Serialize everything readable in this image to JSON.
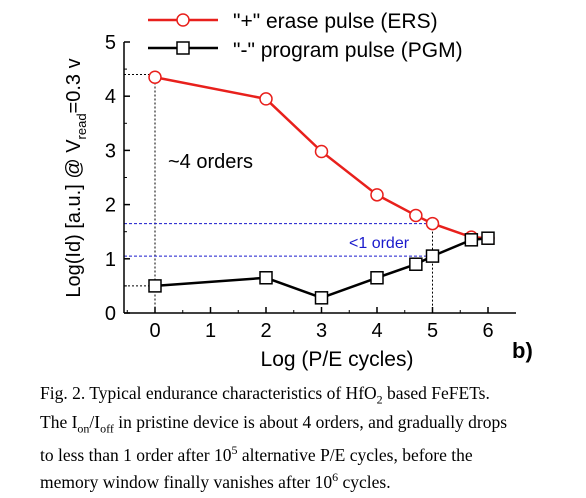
{
  "chart_data": {
    "type": "line",
    "xlabel": "Log (P/E cycles)",
    "ylabel_main": "Log(Id) [a.u.] @ V",
    "ylabel_sub": "read",
    "ylabel_tail": "=0.3 v",
    "panel_label": "b)",
    "xlim": [
      -0.6,
      6.6
    ],
    "ylim": [
      0,
      5
    ],
    "xticks": [
      "0",
      "1",
      "2",
      "3",
      "4",
      "5",
      "6"
    ],
    "yticks": [
      "0",
      "1",
      "2",
      "3",
      "4",
      "5"
    ],
    "legend_position": "top",
    "series": [
      {
        "name": "\"+\" erase pulse (ERS)",
        "color": "#e8201c",
        "marker": "circle",
        "x": [
          0,
          2,
          3,
          4,
          4.7,
          5,
          5.7,
          6
        ],
        "y": [
          4.35,
          3.95,
          2.98,
          2.18,
          1.8,
          1.65,
          1.4,
          1.38
        ]
      },
      {
        "name": "\"-\" program pulse (PGM)",
        "color": "#000000",
        "marker": "square",
        "x": [
          0,
          2,
          3,
          4,
          4.7,
          5,
          5.7,
          6
        ],
        "y": [
          0.5,
          0.65,
          0.28,
          0.65,
          0.9,
          1.05,
          1.35,
          1.38
        ]
      }
    ],
    "annotations": {
      "orders_4": "~4 orders",
      "order_1": "<1 order",
      "order_1_color": "#1a1acc"
    },
    "reference_lines": {
      "h": [
        4.4,
        1.65,
        1.05,
        0.5
      ],
      "v": [
        0,
        5
      ]
    }
  },
  "caption": {
    "line1": "Fig. 2. Typical endurance characteristics of HfO",
    "line1_sub": "2",
    "line1_tail": " based FeFETs.",
    "line2_a": "The I",
    "line2_sub1": "on",
    "line2_b": "/I",
    "line2_sub2": "off",
    "line2_c": " in pristine device is about 4 orders, and gradually drops",
    "line3_a": "to less than 1 order after 10",
    "line3_sup": "5",
    "line3_b": " alternative P/E cycles, before the",
    "line4_a": "memory window finally vanishes after 10",
    "line4_sup": "6",
    "line4_b": " cycles."
  }
}
